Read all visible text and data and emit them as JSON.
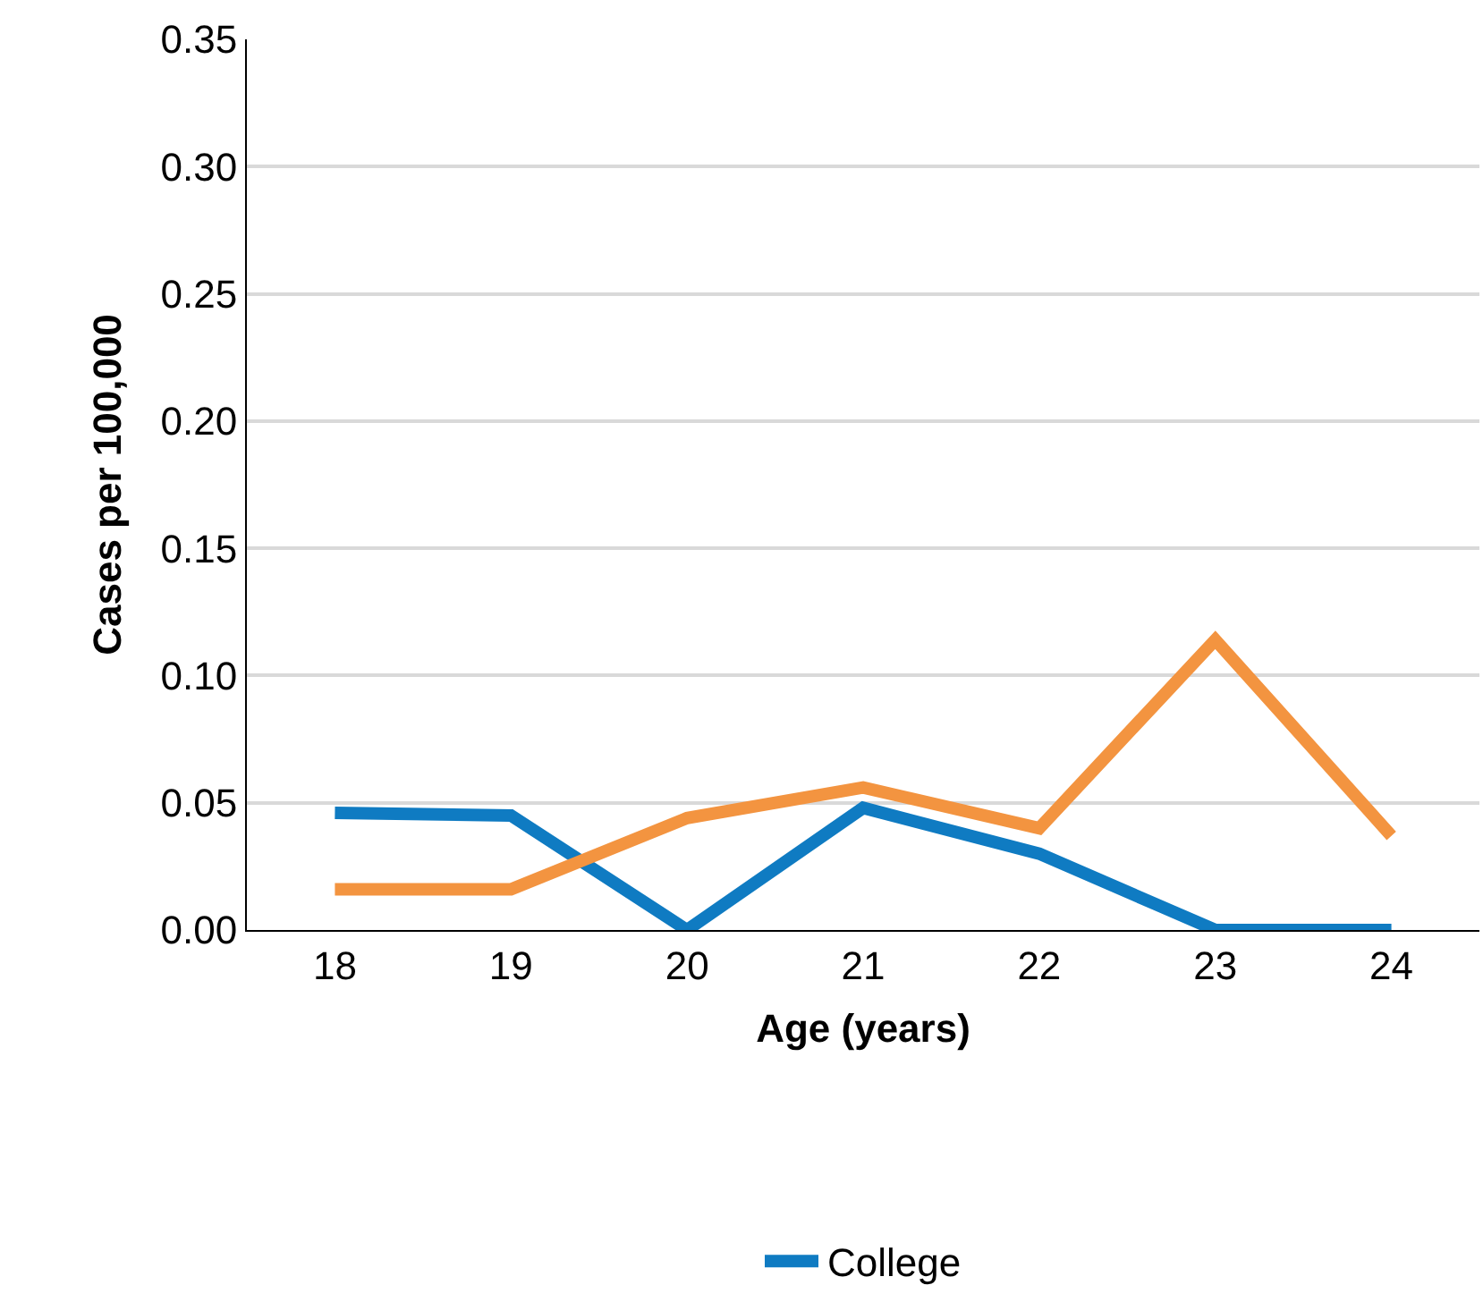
{
  "chart_data": {
    "type": "line",
    "xlabel": "Age (years)",
    "ylabel": "Cases per 100,000",
    "categories": [
      "18",
      "19",
      "20",
      "21",
      "22",
      "23",
      "24"
    ],
    "series": [
      {
        "name": "College",
        "color": "#0f7bc2",
        "values": [
          0.046,
          0.045,
          0,
          0.048,
          0.03,
          0,
          0
        ]
      },
      {
        "color": "#f39440",
        "values": [
          0.016,
          0.016,
          0.044,
          0.056,
          0.04,
          0.114,
          0.037
        ]
      }
    ],
    "ylim": [
      0,
      0.35
    ],
    "yticks": [
      {
        "value": 0,
        "label": "0.00"
      },
      {
        "value": 0.05,
        "label": "0.05"
      },
      {
        "value": 0.1,
        "label": "0.10"
      },
      {
        "value": 0.15,
        "label": "0.15"
      },
      {
        "value": 0.2,
        "label": "0.20"
      },
      {
        "value": 0.25,
        "label": "0.25"
      },
      {
        "value": 0.3,
        "label": "0.30"
      },
      {
        "value": 0.35,
        "label": "0.35"
      }
    ],
    "grid": "y",
    "legend": "bottom",
    "marker": "none",
    "line_style": "solid"
  }
}
